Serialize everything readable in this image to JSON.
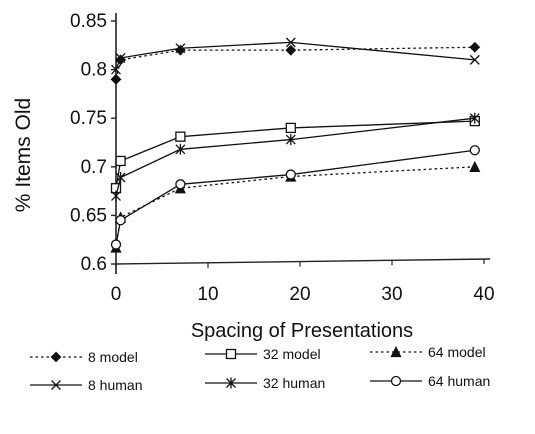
{
  "chart_data": {
    "type": "line",
    "title": "",
    "xlabel": "Spacing of Presentations",
    "ylabel": "% Items Old",
    "xlim": [
      0,
      40
    ],
    "ylim": [
      0.6,
      0.85
    ],
    "x_ticks": [
      "0",
      "10",
      "20",
      "30",
      "40"
    ],
    "y_ticks": [
      "0.6",
      "0.65",
      "0.7",
      "0.75",
      "0.8",
      "0.85"
    ],
    "grid": false,
    "legend_position": "bottom",
    "series": [
      {
        "name": "8 model",
        "x": [
          0,
          0.5,
          7,
          19,
          39
        ],
        "y": [
          0.79,
          0.81,
          0.82,
          0.82,
          0.823
        ],
        "marker": "diamond",
        "line": "dotted",
        "fill": true
      },
      {
        "name": "32 model",
        "x": [
          0,
          0.5,
          7,
          19,
          39
        ],
        "y": [
          0.678,
          0.706,
          0.731,
          0.74,
          0.747
        ],
        "marker": "square",
        "line": "solid",
        "fill": false
      },
      {
        "name": "64 model",
        "x": [
          0,
          0.5,
          7,
          19,
          39
        ],
        "y": [
          0.617,
          0.648,
          0.678,
          0.69,
          0.7
        ],
        "marker": "triangle",
        "line": "dotted",
        "fill": true
      },
      {
        "name": "8 human",
        "x": [
          0,
          0.5,
          7,
          19,
          39
        ],
        "y": [
          0.8,
          0.812,
          0.822,
          0.828,
          0.81
        ],
        "marker": "x",
        "line": "solid",
        "fill": false
      },
      {
        "name": "32 human",
        "x": [
          0,
          0.5,
          7,
          19,
          39
        ],
        "y": [
          0.67,
          0.689,
          0.718,
          0.728,
          0.75
        ],
        "marker": "asterisk",
        "line": "solid",
        "fill": false
      },
      {
        "name": "64 human",
        "x": [
          0,
          0.5,
          7,
          19,
          39
        ],
        "y": [
          0.62,
          0.645,
          0.682,
          0.692,
          0.717
        ],
        "marker": "circle",
        "line": "solid",
        "fill": false
      }
    ]
  }
}
